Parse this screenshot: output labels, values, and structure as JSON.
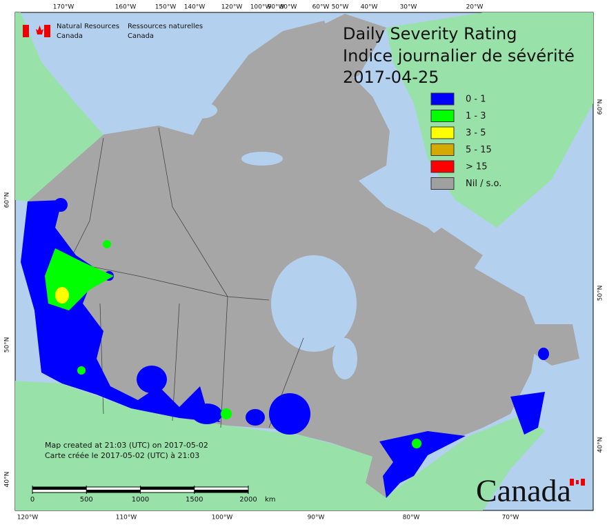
{
  "header": {
    "title": "Daily Severity Rating",
    "title_fr": "Indice journalier de sévérité",
    "date": "2017-04-25"
  },
  "attribution": {
    "en": [
      "Natural Resources",
      "Canada"
    ],
    "fr": [
      "Ressources naturelles",
      "Canada"
    ]
  },
  "legend": [
    {
      "label": "0 - 1",
      "color": "#0000ff"
    },
    {
      "label": "1 - 3",
      "color": "#00ff00"
    },
    {
      "label": "3 - 5",
      "color": "#ffff00"
    },
    {
      "label": "5 - 15",
      "color": "#d4aa00"
    },
    {
      "label": "> 15",
      "color": "#ff0000"
    },
    {
      "label": "Nil / s.o.",
      "color": "#a0a0a0"
    }
  ],
  "notes": [
    "Map created at 21:03 (UTC) on 2017-05-02",
    "Carte créée le 2017-05-02 (UTC) à 21:03"
  ],
  "scale_bar": {
    "ticks": [
      0,
      500,
      1000,
      1500,
      2000
    ],
    "unit": "km"
  },
  "graticule": {
    "top": [
      "170°W",
      "160°W",
      "150°W",
      "140°W",
      "120°W",
      "100°W",
      "90°W",
      "80°W",
      "60°W",
      "50°W",
      "40°W",
      "30°W",
      "20°W"
    ],
    "bottom": [
      "120°W",
      "110°W",
      "100°W",
      "90°W",
      "80°W",
      "70°W"
    ],
    "left": [
      "60°N",
      "50°N",
      "40°N"
    ],
    "right": [
      "60°N",
      "50°N",
      "40°N"
    ]
  },
  "wordmark": "Canada"
}
